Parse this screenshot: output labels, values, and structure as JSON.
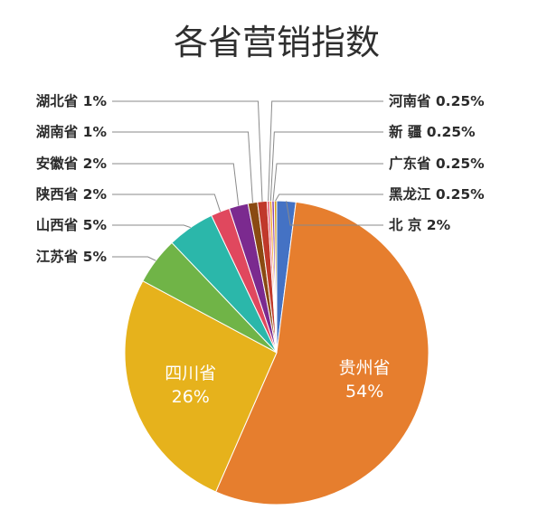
{
  "chart_data": {
    "type": "pie",
    "title": "各省营销指数",
    "slices": [
      {
        "name": "北    京",
        "value": 2,
        "display": "北    京 2%",
        "color": "#4472c4"
      },
      {
        "name": "贵州省",
        "value": 54,
        "display": "54%",
        "color": "#e67e2e"
      },
      {
        "name": "四川省",
        "value": 26,
        "display": "26%",
        "color": "#e6b21c"
      },
      {
        "name": "江苏省",
        "value": 5,
        "display": "江苏省 5%",
        "color": "#70b447"
      },
      {
        "name": "山西省",
        "value": 5,
        "display": "山西省 5%",
        "color": "#2bb7aa"
      },
      {
        "name": "陕西省",
        "value": 2,
        "display": "陕西省 2%",
        "color": "#e0485e"
      },
      {
        "name": "安徽省",
        "value": 2,
        "display": "安徽省 2%",
        "color": "#7b2a8f"
      },
      {
        "name": "湖南省",
        "value": 1,
        "display": "湖南省 1%",
        "color": "#8a4a12"
      },
      {
        "name": "湖北省",
        "value": 1,
        "display": "湖北省 1%",
        "color": "#c0392b"
      },
      {
        "name": "河南省",
        "value": 0.25,
        "display": "河南省 0.25%",
        "color": "#e2506a"
      },
      {
        "name": "新    疆",
        "value": 0.25,
        "display": "新    疆 0.25%",
        "color": "#f0a020"
      },
      {
        "name": "广东省",
        "value": 0.25,
        "display": "广东省 0.25%",
        "color": "#8e44ad"
      },
      {
        "name": "黑龙江",
        "value": 0.25,
        "display": "黑龙江 0.25%",
        "color": "#d4a017"
      }
    ]
  }
}
